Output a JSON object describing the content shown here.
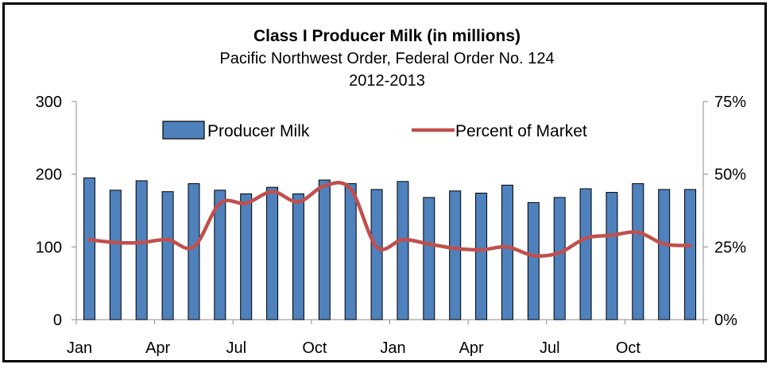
{
  "chart_data": {
    "type": "bar",
    "title": "Class I Producer Milk (in millions)",
    "subtitle_lines": [
      "Pacific Northwest Order, Federal Order No. 124",
      "2012-2013"
    ],
    "categories": [
      "Jan",
      "Feb",
      "Mar",
      "Apr",
      "May",
      "Jun",
      "Jul",
      "Aug",
      "Sep",
      "Oct",
      "Nov",
      "Dec",
      "Jan",
      "Feb",
      "Mar",
      "Apr",
      "May",
      "Jun",
      "Jul",
      "Aug",
      "Sep",
      "Oct",
      "Nov",
      "Dec"
    ],
    "x_tick_labels": [
      "Jan",
      "Apr",
      "Jul",
      "Oct",
      "Jan",
      "Apr",
      "Jul",
      "Oct"
    ],
    "x_tick_label_category_index": [
      0,
      3,
      6,
      9,
      12,
      15,
      18,
      21
    ],
    "series": [
      {
        "name": "Producer Milk",
        "type": "bar",
        "axis": "left",
        "color": "#4F81BD",
        "values": [
          195,
          178,
          191,
          176,
          187,
          178,
          173,
          182,
          173,
          192,
          187,
          179,
          190,
          168,
          177,
          174,
          185,
          161,
          168,
          180,
          175,
          187,
          179,
          179
        ]
      },
      {
        "name": "Percent of Market",
        "type": "line",
        "axis": "right",
        "color": "#C0504D",
        "values": [
          27.5,
          26.5,
          26.5,
          27.5,
          25.0,
          40.0,
          40.0,
          44.0,
          40.5,
          46.0,
          45.0,
          25.0,
          27.5,
          26.0,
          24.5,
          24.0,
          25.0,
          22.0,
          23.0,
          28.0,
          29.0,
          30.0,
          26.0,
          25.5
        ]
      }
    ],
    "y_left": {
      "lim": [
        0,
        300
      ],
      "ticks": [
        "0",
        "100",
        "200",
        "300"
      ]
    },
    "y_right": {
      "lim": [
        0,
        75
      ],
      "ticks": [
        "0%",
        "25%",
        "50%",
        "75%"
      ]
    },
    "legend": {
      "position": "top",
      "labels": [
        "Producer Milk",
        "Percent of Market"
      ]
    },
    "grid": false
  }
}
